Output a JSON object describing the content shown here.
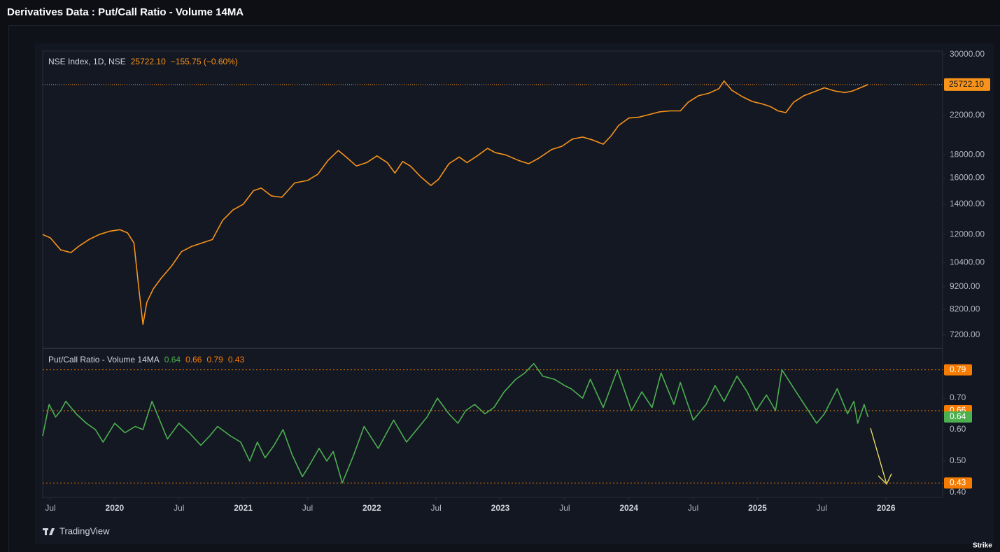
{
  "page_title": "Derivatives Data : Put/Call Ratio - Volume 14MA",
  "brand": "TradingView",
  "watermark": "Strike",
  "chart_data": [
    {
      "type": "line",
      "legend_title": "NSE Index, 1D, NSE",
      "last_label": "25722.10",
      "change_label": "−155.75 (−0.60%)",
      "log_scale": true,
      "color": "#f7931a",
      "xlim": [
        2019.44,
        2026.44
      ],
      "ylim": [
        6750,
        30500
      ],
      "yticks": [
        {
          "value": 7200,
          "label": "7200.00"
        },
        {
          "value": 8200,
          "label": "8200.00"
        },
        {
          "value": 9200,
          "label": "9200.00"
        },
        {
          "value": 10400,
          "label": "10400.00"
        },
        {
          "value": 12000,
          "label": "12000.00"
        },
        {
          "value": 14000,
          "label": "14000.00"
        },
        {
          "value": 16000,
          "label": "16000.00"
        },
        {
          "value": 18000,
          "label": "18000.00"
        },
        {
          "value": 22000,
          "label": "22000.00"
        },
        {
          "value": 30000,
          "label": "30000.00"
        }
      ],
      "x": [
        2019.44,
        2019.5,
        2019.58,
        2019.66,
        2019.72,
        2019.8,
        2019.88,
        2019.96,
        2020.04,
        2020.1,
        2020.15,
        2020.19,
        2020.22,
        2020.25,
        2020.3,
        2020.36,
        2020.44,
        2020.52,
        2020.6,
        2020.68,
        2020.76,
        2020.84,
        2020.92,
        2021.0,
        2021.08,
        2021.14,
        2021.22,
        2021.3,
        2021.4,
        2021.5,
        2021.58,
        2021.66,
        2021.74,
        2021.8,
        2021.88,
        2021.96,
        2022.04,
        2022.12,
        2022.18,
        2022.24,
        2022.3,
        2022.38,
        2022.46,
        2022.52,
        2022.6,
        2022.68,
        2022.74,
        2022.82,
        2022.9,
        2022.96,
        2023.04,
        2023.14,
        2023.22,
        2023.3,
        2023.4,
        2023.48,
        2023.56,
        2023.64,
        2023.72,
        2023.8,
        2023.86,
        2023.92,
        2024.0,
        2024.08,
        2024.16,
        2024.24,
        2024.32,
        2024.4,
        2024.46,
        2024.54,
        2024.62,
        2024.7,
        2024.74,
        2024.8,
        2024.88,
        2024.96,
        2025.04,
        2025.1,
        2025.16,
        2025.22,
        2025.28,
        2025.36,
        2025.44,
        2025.52,
        2025.6,
        2025.68,
        2025.74,
        2025.8,
        2025.86
      ],
      "values": [
        12000,
        11800,
        11100,
        10950,
        11300,
        11700,
        12000,
        12200,
        12300,
        12100,
        11500,
        9000,
        7600,
        8500,
        9100,
        9600,
        10200,
        11000,
        11300,
        11500,
        11700,
        12900,
        13600,
        14000,
        15000,
        15200,
        14600,
        14500,
        15600,
        15800,
        16300,
        17500,
        18400,
        17800,
        17000,
        17300,
        17900,
        17300,
        16400,
        17400,
        17000,
        16100,
        15400,
        15900,
        17200,
        17800,
        17300,
        17900,
        18600,
        18200,
        18000,
        17500,
        17200,
        17700,
        18500,
        18800,
        19500,
        19700,
        19400,
        19000,
        19800,
        20900,
        21700,
        21800,
        22100,
        22400,
        22500,
        22500,
        23500,
        24300,
        24600,
        25200,
        26200,
        25000,
        24200,
        23600,
        23300,
        23000,
        22500,
        22300,
        23500,
        24300,
        24800,
        25300,
        24900,
        24700,
        24900,
        25300,
        25722.1
      ]
    },
    {
      "type": "line",
      "legend_title": "Put/Call Ratio - Volume 14MA",
      "color": "#4caf50",
      "level_color": "#f57c00",
      "xlim": [
        2019.44,
        2026.44
      ],
      "ylim": [
        0.384,
        0.856
      ],
      "yticks": [
        {
          "value": 0.4,
          "label": "0.40"
        },
        {
          "value": 0.5,
          "label": "0.50"
        },
        {
          "value": 0.6,
          "label": "0.60"
        },
        {
          "value": 0.7,
          "label": "0.70"
        }
      ],
      "reference_lines": [
        0.66,
        0.79,
        0.43
      ],
      "xticks": [
        {
          "value": 2019.5,
          "label": "Jul"
        },
        {
          "value": 2020,
          "label": "2020"
        },
        {
          "value": 2020.5,
          "label": "Jul"
        },
        {
          "value": 2021,
          "label": "2021"
        },
        {
          "value": 2021.5,
          "label": "Jul"
        },
        {
          "value": 2022,
          "label": "2022"
        },
        {
          "value": 2022.5,
          "label": "Jul"
        },
        {
          "value": 2023,
          "label": "2023"
        },
        {
          "value": 2023.5,
          "label": "Jul"
        },
        {
          "value": 2024,
          "label": "2024"
        },
        {
          "value": 2024.5,
          "label": "Jul"
        },
        {
          "value": 2025,
          "label": "2025"
        },
        {
          "value": 2025.5,
          "label": "Jul"
        },
        {
          "value": 2026,
          "label": "2026"
        }
      ],
      "x": [
        2019.44,
        2019.49,
        2019.54,
        2019.58,
        2019.62,
        2019.7,
        2019.78,
        2019.85,
        2019.91,
        2020.0,
        2020.08,
        2020.16,
        2020.22,
        2020.29,
        2020.35,
        2020.41,
        2020.5,
        2020.58,
        2020.67,
        2020.74,
        2020.8,
        2020.9,
        2020.98,
        2021.05,
        2021.11,
        2021.17,
        2021.24,
        2021.31,
        2021.38,
        2021.46,
        2021.52,
        2021.59,
        2021.65,
        2021.7,
        2021.77,
        2021.86,
        2021.94,
        2022.05,
        2022.17,
        2022.27,
        2022.35,
        2022.43,
        2022.51,
        2022.6,
        2022.67,
        2022.73,
        2022.8,
        2022.88,
        2022.95,
        2023.03,
        2023.12,
        2023.19,
        2023.26,
        2023.33,
        2023.42,
        2023.5,
        2023.55,
        2023.64,
        2023.7,
        2023.8,
        2023.91,
        2024.02,
        2024.1,
        2024.18,
        2024.25,
        2024.35,
        2024.4,
        2024.5,
        2024.6,
        2024.67,
        2024.74,
        2024.84,
        2024.92,
        2024.99,
        2025.07,
        2025.14,
        2025.19,
        2025.3,
        2025.38,
        2025.46,
        2025.52,
        2025.62,
        2025.7,
        2025.75,
        2025.78,
        2025.83,
        2025.86
      ],
      "values": [
        0.58,
        0.68,
        0.64,
        0.66,
        0.69,
        0.65,
        0.62,
        0.6,
        0.56,
        0.62,
        0.59,
        0.61,
        0.6,
        0.69,
        0.63,
        0.57,
        0.62,
        0.59,
        0.55,
        0.58,
        0.61,
        0.58,
        0.56,
        0.5,
        0.56,
        0.51,
        0.55,
        0.6,
        0.52,
        0.45,
        0.49,
        0.54,
        0.5,
        0.53,
        0.43,
        0.52,
        0.61,
        0.54,
        0.63,
        0.56,
        0.6,
        0.64,
        0.7,
        0.65,
        0.62,
        0.66,
        0.68,
        0.65,
        0.67,
        0.72,
        0.76,
        0.78,
        0.81,
        0.77,
        0.76,
        0.74,
        0.73,
        0.7,
        0.76,
        0.67,
        0.79,
        0.66,
        0.72,
        0.67,
        0.78,
        0.68,
        0.75,
        0.63,
        0.68,
        0.74,
        0.69,
        0.77,
        0.72,
        0.66,
        0.71,
        0.66,
        0.79,
        0.72,
        0.67,
        0.62,
        0.65,
        0.73,
        0.65,
        0.69,
        0.62,
        0.68,
        0.64
      ]
    }
  ]
}
